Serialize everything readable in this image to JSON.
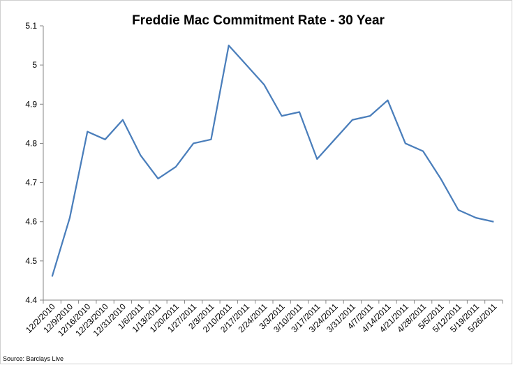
{
  "chart_data": {
    "type": "line",
    "title": "Freddie Mac Commitment Rate - 30 Year",
    "categories": [
      "12/2/2010",
      "12/9/2010",
      "12/16/2010",
      "12/23/2010",
      "12/31/2010",
      "1/6/2011",
      "1/13/2011",
      "1/20/2011",
      "1/27/2011",
      "2/3/2011",
      "2/10/2011",
      "2/17/2011",
      "2/24/2011",
      "3/3/2011",
      "3/10/2011",
      "3/17/2011",
      "3/24/2011",
      "3/31/2011",
      "4/7/2011",
      "4/14/2011",
      "4/21/2011",
      "4/28/2011",
      "5/5/2011",
      "5/12/2011",
      "5/19/2011",
      "5/26/2011"
    ],
    "values": [
      4.46,
      4.61,
      4.83,
      4.81,
      4.86,
      4.77,
      4.71,
      4.74,
      4.8,
      4.81,
      5.05,
      5.0,
      4.95,
      4.87,
      4.88,
      4.76,
      4.81,
      4.86,
      4.87,
      4.91,
      4.8,
      4.78,
      4.71,
      4.63,
      4.61,
      4.6
    ],
    "color": "#4a7ebb",
    "ylim": [
      4.4,
      5.1
    ],
    "yticks": [
      4.4,
      4.5,
      4.6,
      4.7,
      4.8,
      4.9,
      5,
      5.1
    ],
    "grid": false,
    "source": "Source: Barclays Live"
  }
}
